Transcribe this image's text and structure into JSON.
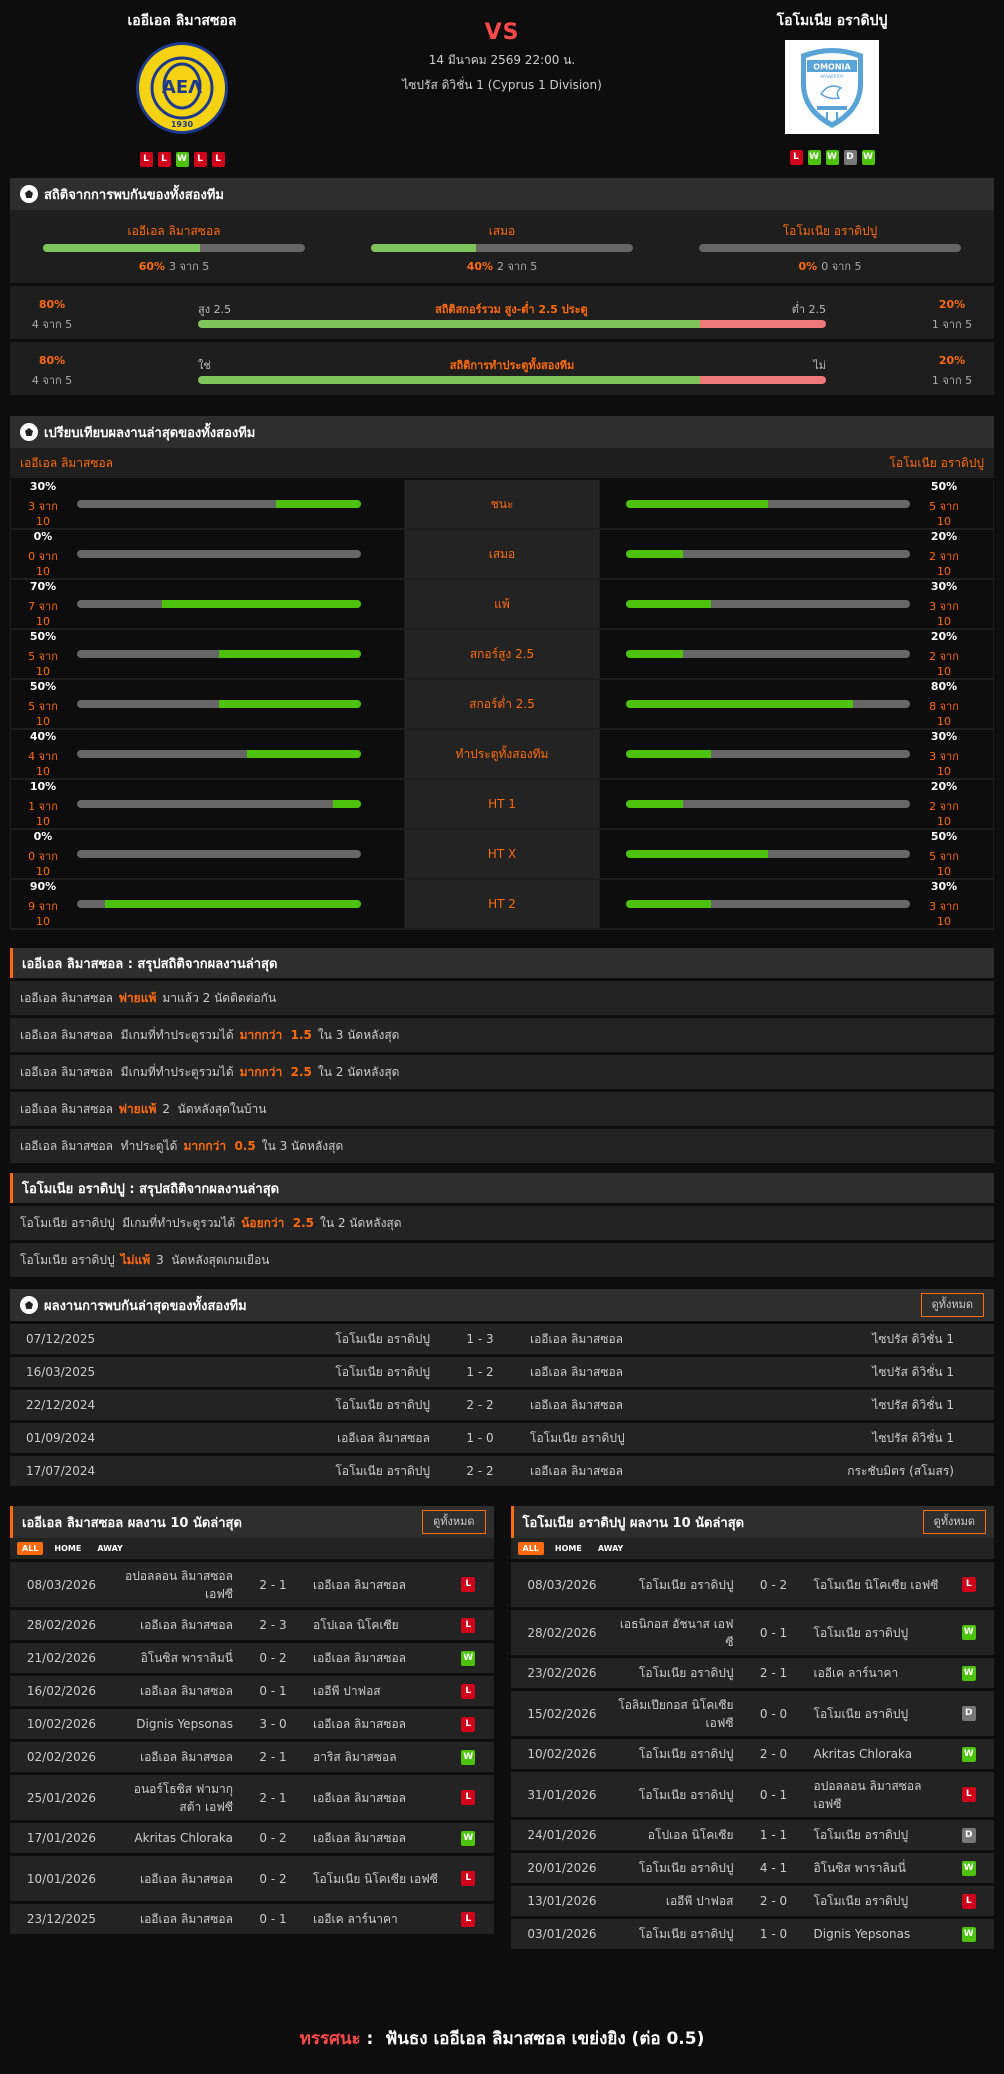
{
  "header": {
    "home_team": "เออีเอล ลิมาสซอล",
    "away_team": "โอโมเนีย อราดิปปู",
    "vs": "VS",
    "date": "14 มีนาคม 2569 22:00 น.",
    "league": "ไซปรัส ดิวิชั่น 1 (Cyprus 1 Division)",
    "home_logo_text": "AEΛ",
    "home_logo_year": "1930",
    "away_logo_text": "OMONIA",
    "away_logo_sub": "ΑΡΑΔΙΠΠΟΥ",
    "home_form": [
      "L",
      "L",
      "W",
      "L",
      "L"
    ],
    "away_form": [
      "L",
      "W",
      "W",
      "D",
      "W"
    ]
  },
  "h2h_stats": {
    "title": "สถิติจากการพบกันของทั้งสองทีม",
    "columns": [
      {
        "label": "เออีเอล ลิมาสซอล",
        "pct": "60%",
        "count": "3 จาก 5",
        "fill": 60
      },
      {
        "label": "เสมอ",
        "pct": "40%",
        "count": "2 จาก 5",
        "fill": 40
      },
      {
        "label": "โอโมเนีย อราดิปปู",
        "pct": "0%",
        "count": "0 จาก 5",
        "fill": 0
      }
    ],
    "over_under": {
      "title": "สถิติสกอร์รวม สูง-ต่ำ 2.5 ประตู",
      "left_label": "สูง 2.5",
      "right_label": "ต่ำ 2.5",
      "left_pct": "80%",
      "left_count": "4 จาก 5",
      "right_pct": "20%",
      "right_count": "1 จาก 5",
      "green": 80
    },
    "btts": {
      "title": "สถิติการทำประตูทั้งสองทีม",
      "left_label": "ใช่",
      "right_label": "ไม่",
      "left_pct": "80%",
      "left_count": "4 จาก 5",
      "right_pct": "20%",
      "right_count": "1 จาก 5",
      "green": 80
    }
  },
  "compare": {
    "title": "เปรียบเทียบผลงานล่าสุดของทั้งสองทีม",
    "home_team": "เออีเอล ลิมาสซอล",
    "away_team": "โอโมเนีย อราดิปปู",
    "rows": [
      {
        "label": "ชนะ",
        "home_pct": "30%",
        "home_cnt": "3 จาก 10",
        "home_fill": 30,
        "away_pct": "50%",
        "away_cnt": "5 จาก 10",
        "away_fill": 50
      },
      {
        "label": "เสมอ",
        "home_pct": "0%",
        "home_cnt": "0 จาก 10",
        "home_fill": 0,
        "away_pct": "20%",
        "away_cnt": "2 จาก 10",
        "away_fill": 20
      },
      {
        "label": "แพ้",
        "home_pct": "70%",
        "home_cnt": "7 จาก 10",
        "home_fill": 70,
        "away_pct": "30%",
        "away_cnt": "3 จาก 10",
        "away_fill": 30
      },
      {
        "label": "สกอร์สูง 2.5",
        "home_pct": "50%",
        "home_cnt": "5 จาก 10",
        "home_fill": 50,
        "away_pct": "20%",
        "away_cnt": "2 จาก 10",
        "away_fill": 20
      },
      {
        "label": "สกอร์ต่ำ 2.5",
        "home_pct": "50%",
        "home_cnt": "5 จาก 10",
        "home_fill": 50,
        "away_pct": "80%",
        "away_cnt": "8 จาก 10",
        "away_fill": 80
      },
      {
        "label": "ทำประตูทั้งสองทีม",
        "home_pct": "40%",
        "home_cnt": "4 จาก 10",
        "home_fill": 40,
        "away_pct": "30%",
        "away_cnt": "3 จาก 10",
        "away_fill": 30
      },
      {
        "label": "HT 1",
        "home_pct": "10%",
        "home_cnt": "1 จาก 10",
        "home_fill": 10,
        "away_pct": "20%",
        "away_cnt": "2 จาก 10",
        "away_fill": 20
      },
      {
        "label": "HT X",
        "home_pct": "0%",
        "home_cnt": "0 จาก 10",
        "home_fill": 0,
        "away_pct": "50%",
        "away_cnt": "5 จาก 10",
        "away_fill": 50
      },
      {
        "label": "HT 2",
        "home_pct": "90%",
        "home_cnt": "9 จาก 10",
        "home_fill": 90,
        "away_pct": "30%",
        "away_cnt": "3 จาก 10",
        "away_fill": 30
      }
    ]
  },
  "home_summary": {
    "title": "เออีเอล ลิมาสซอล : สรุปสถิติจากผลงานล่าสุด",
    "items": [
      {
        "a": "เออีเอล ลิมาสซอล",
        "hl": "พ่ายแพ้",
        "b": "มาแล้ว 2 นัดติดต่อกัน"
      },
      {
        "a": "เออีเอล ลิมาสซอล  มีเกมที่ทำประตูรวมได้",
        "hl": "มากกว่า  1.5",
        "b": "ใน 3 นัดหลังสุด"
      },
      {
        "a": "เออีเอล ลิมาสซอล  มีเกมที่ทำประตูรวมได้",
        "hl": "มากกว่า  2.5",
        "b": "ใน 2 นัดหลังสุด"
      },
      {
        "a": "เออีเอล ลิมาสซอล",
        "hl": "พ่ายแพ้",
        "b": "2  นัดหลังสุดในบ้าน"
      },
      {
        "a": "เออีเอล ลิมาสซอล  ทำประตูได้",
        "hl": "มากกว่า  0.5",
        "b": "ใน 3 นัดหลังสุด"
      }
    ]
  },
  "away_summary": {
    "title": "โอโมเนีย อราดิปปู : สรุปสถิติจากผลงานล่าสุด",
    "items": [
      {
        "a": "โอโมเนีย อราดิปปู  มีเกมที่ทำประตูรวมได้",
        "hl": "น้อยกว่า  2.5",
        "b": "ใน 2 นัดหลังสุด"
      },
      {
        "a": "โอโมเนีย อราดิปปู",
        "hl": "ไม่แพ้",
        "b": "3  นัดหลังสุดเกมเยือน"
      }
    ]
  },
  "h2h_results": {
    "title": "ผลงานการพบกันล่าสุดของทั้งสองทีม",
    "view_all": "ดูทั้งหมด",
    "rows": [
      {
        "date": "07/12/2025",
        "home": "โอโมเนีย อราดิปปู",
        "score": "1 - 3",
        "away": "เออีเอล ลิมาสซอล",
        "league": "ไซปรัส ดิวิชั่น 1"
      },
      {
        "date": "16/03/2025",
        "home": "โอโมเนีย อราดิปปู",
        "score": "1 - 2",
        "away": "เออีเอล ลิมาสซอล",
        "league": "ไซปรัส ดิวิชั่น 1"
      },
      {
        "date": "22/12/2024",
        "home": "โอโมเนีย อราดิปปู",
        "score": "2 - 2",
        "away": "เออีเอล ลิมาสซอล",
        "league": "ไซปรัส ดิวิชั่น 1"
      },
      {
        "date": "01/09/2024",
        "home": "เออีเอล ลิมาสซอล",
        "score": "1 - 0",
        "away": "โอโมเนีย อราดิปปู",
        "league": "ไซปรัส ดิวิชั่น 1"
      },
      {
        "date": "17/07/2024",
        "home": "โอโมเนีย อราดิปปู",
        "score": "2 - 2",
        "away": "เออีเอล ลิมาสซอล",
        "league": "กระชับมิตร (สโมสร)"
      }
    ]
  },
  "home_last10": {
    "title": "เออีเอล ลิมาสซอล ผลงาน 10 นัดล่าสุด",
    "view_all": "ดูทั้งหมด",
    "tabs": [
      "ALL",
      "HOME",
      "AWAY"
    ],
    "rows": [
      {
        "date": "08/03/2026",
        "home": "อปอลลอน ลิมาสซอล เอฟซี",
        "score": "2 - 1",
        "away": "เออีเอล ลิมาสซอล",
        "result": "L",
        "tall": true
      },
      {
        "date": "28/02/2026",
        "home": "เออีเอล ลิมาสซอล",
        "score": "2 - 3",
        "away": "อโปเอล นิโคเซีย",
        "result": "L"
      },
      {
        "date": "21/02/2026",
        "home": "อิโนซิส พาราลิมนี่",
        "score": "0 - 2",
        "away": "เออีเอล ลิมาสซอล",
        "result": "W"
      },
      {
        "date": "16/02/2026",
        "home": "เออีเอล ลิมาสซอล",
        "score": "0 - 1",
        "away": "เออีพี ปาฟอส",
        "result": "L"
      },
      {
        "date": "10/02/2026",
        "home": "Dignis Yepsonas",
        "score": "3 - 0",
        "away": "เออีเอล ลิมาสซอล",
        "result": "L"
      },
      {
        "date": "02/02/2026",
        "home": "เออีเอล ลิมาสซอล",
        "score": "2 - 1",
        "away": "อาริส ลิมาสซอล",
        "result": "W"
      },
      {
        "date": "25/01/2026",
        "home": "อนอร์โธซิส ฟามากุสต้า เอฟซี",
        "score": "2 - 1",
        "away": "เออีเอล ลิมาสซอล",
        "result": "L",
        "tall": true
      },
      {
        "date": "17/01/2026",
        "home": "Akritas Chloraka",
        "score": "0 - 2",
        "away": "เออีเอล ลิมาสซอล",
        "result": "W"
      },
      {
        "date": "10/01/2026",
        "home": "เออีเอล ลิมาสซอล",
        "score": "0 - 2",
        "away": "โอโมเนีย นิโคเซีย เอฟซี",
        "result": "L",
        "tall": true
      },
      {
        "date": "23/12/2025",
        "home": "เออีเอล ลิมาสซอล",
        "score": "0 - 1",
        "away": "เออีเค ลาร์นาคา",
        "result": "L"
      }
    ]
  },
  "away_last10": {
    "title": "โอโมเนีย อราดิปปู ผลงาน 10 นัดล่าสุด",
    "view_all": "ดูทั้งหมด",
    "tabs": [
      "ALL",
      "HOME",
      "AWAY"
    ],
    "rows": [
      {
        "date": "08/03/2026",
        "home": "โอโมเนีย อราดิปปู",
        "score": "0 - 2",
        "away": "โอโมเนีย นิโคเซีย เอฟซี",
        "result": "L",
        "tall": true
      },
      {
        "date": "28/02/2026",
        "home": "เอธนิกอส อัชนาส เอฟซี",
        "score": "0 - 1",
        "away": "โอโมเนีย อราดิปปู",
        "result": "W",
        "tall": true
      },
      {
        "date": "23/02/2026",
        "home": "โอโมเนีย อราดิปปู",
        "score": "2 - 1",
        "away": "เออีเค ลาร์นาคา",
        "result": "W"
      },
      {
        "date": "15/02/2026",
        "home": "โอลิมเปียกอส นิโคเซีย เอฟซี",
        "score": "0 - 0",
        "away": "โอโมเนีย อราดิปปู",
        "result": "D",
        "tall": true
      },
      {
        "date": "10/02/2026",
        "home": "โอโมเนีย อราดิปปู",
        "score": "2 - 0",
        "away": "Akritas Chloraka",
        "result": "W"
      },
      {
        "date": "31/01/2026",
        "home": "โอโมเนีย อราดิปปู",
        "score": "0 - 1",
        "away": "อปอลลอน ลิมาสซอล เอฟซี",
        "result": "L",
        "tall": true
      },
      {
        "date": "24/01/2026",
        "home": "อโปเอล นิโคเซีย",
        "score": "1 - 1",
        "away": "โอโมเนีย อราดิปปู",
        "result": "D"
      },
      {
        "date": "20/01/2026",
        "home": "โอโมเนีย อราดิปปู",
        "score": "4 - 1",
        "away": "อิโนซิส พาราลิมนี่",
        "result": "W"
      },
      {
        "date": "13/01/2026",
        "home": "เออีพี ปาฟอส",
        "score": "2 - 0",
        "away": "โอโมเนีย อราดิปปู",
        "result": "L"
      },
      {
        "date": "03/01/2026",
        "home": "โอโมเนีย อราดิปปู",
        "score": "1 - 0",
        "away": "Dignis Yepsonas",
        "result": "W"
      }
    ]
  },
  "verdict": {
    "label": "ทรรศนะ",
    "separator": " :  ",
    "text": "ฟันธง เออีเอล ลิมาสซอล เขย่งยิง (ต่อ 0.5)"
  },
  "colors": {
    "accent": "#ff6b0f",
    "vs": "#ff4a4a",
    "win": "#4cc20d",
    "loss": "#d0021b",
    "draw": "#777777",
    "bar_green": "#7fc45a",
    "bar_red": "#f07a7a"
  }
}
